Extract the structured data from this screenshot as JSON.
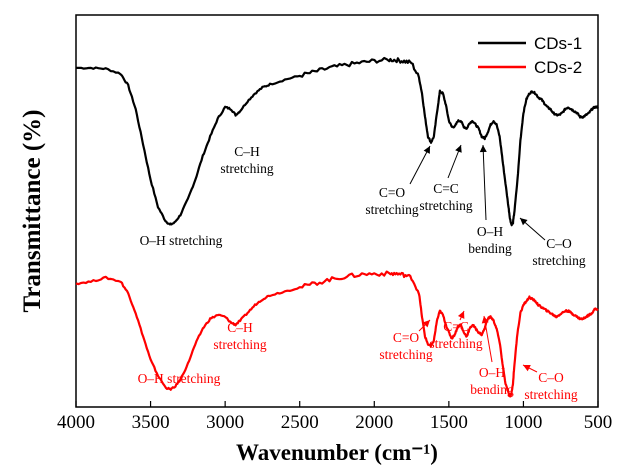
{
  "chart_data": {
    "type": "line",
    "xlabel": "Wavenumber (cm⁻¹)",
    "ylabel": "Transmittance (%)",
    "xlim": [
      4000,
      500
    ],
    "x_reversed": true,
    "xticks": [
      4000,
      3500,
      3000,
      2500,
      2000,
      1500,
      1000,
      500
    ],
    "y_ticks_shown": false,
    "grid": false,
    "legend_position": "top-right",
    "series": [
      {
        "name": "CDs-1",
        "color": "#000000",
        "x": [
          4000,
          3900,
          3800,
          3700,
          3650,
          3600,
          3550,
          3500,
          3450,
          3400,
          3370,
          3340,
          3300,
          3250,
          3200,
          3150,
          3100,
          3050,
          3000,
          2960,
          2930,
          2900,
          2850,
          2800,
          2750,
          2700,
          2600,
          2500,
          2400,
          2300,
          2200,
          2100,
          2000,
          1900,
          1850,
          1800,
          1750,
          1700,
          1680,
          1660,
          1640,
          1620,
          1600,
          1580,
          1560,
          1540,
          1520,
          1500,
          1480,
          1460,
          1440,
          1420,
          1400,
          1380,
          1360,
          1340,
          1320,
          1300,
          1280,
          1260,
          1240,
          1220,
          1200,
          1180,
          1160,
          1140,
          1120,
          1100,
          1090,
          1080,
          1070,
          1060,
          1040,
          1020,
          1000,
          980,
          960,
          940,
          920,
          900,
          880,
          860,
          840,
          820,
          800,
          780,
          760,
          740,
          720,
          700,
          680,
          660,
          640,
          620,
          600,
          580,
          560,
          540,
          520,
          500
        ],
        "y": [
          86.5,
          86.5,
          86.3,
          85,
          82,
          76,
          67,
          58,
          51,
          47.5,
          46.5,
          47,
          49,
          53,
          58,
          64,
          69,
          73.5,
          76.5,
          76,
          74.5,
          75.5,
          78,
          80,
          81.5,
          82.3,
          83.5,
          84.5,
          85.5,
          86.5,
          87.2,
          87.8,
          88.3,
          88.6,
          88.5,
          88.2,
          87.8,
          84,
          80,
          74,
          69,
          67.5,
          69,
          75,
          80.5,
          80,
          77,
          73,
          71.5,
          71.5,
          73,
          73,
          71.5,
          71,
          72.5,
          73,
          72,
          71,
          69,
          68.5,
          70,
          72,
          73,
          72,
          69,
          63,
          57,
          51,
          48,
          46.5,
          47,
          50,
          58,
          68,
          75,
          78.5,
          80,
          80.5,
          80,
          79,
          78.5,
          77.5,
          76.5,
          76,
          75,
          74.5,
          74.5,
          75,
          76,
          76.5,
          76,
          75.5,
          75,
          74,
          74,
          74.5,
          75,
          76,
          76.5,
          76.5
        ]
      },
      {
        "name": "CDs-2",
        "color": "#ff0000",
        "x": [
          4000,
          3900,
          3800,
          3700,
          3650,
          3600,
          3550,
          3500,
          3450,
          3400,
          3370,
          3340,
          3300,
          3250,
          3200,
          3150,
          3100,
          3050,
          3000,
          2960,
          2930,
          2900,
          2850,
          2800,
          2750,
          2700,
          2600,
          2500,
          2400,
          2300,
          2200,
          2100,
          2000,
          1900,
          1850,
          1800,
          1750,
          1700,
          1680,
          1660,
          1640,
          1620,
          1600,
          1580,
          1560,
          1540,
          1520,
          1500,
          1480,
          1460,
          1440,
          1420,
          1400,
          1380,
          1360,
          1340,
          1320,
          1300,
          1280,
          1260,
          1240,
          1220,
          1200,
          1180,
          1160,
          1140,
          1120,
          1100,
          1090,
          1080,
          1070,
          1060,
          1040,
          1020,
          1000,
          980,
          960,
          940,
          920,
          900,
          880,
          860,
          840,
          820,
          800,
          780,
          760,
          740,
          720,
          700,
          680,
          660,
          640,
          620,
          600,
          580,
          560,
          540,
          520,
          500
        ],
        "y": [
          31.5,
          32,
          33,
          32,
          29,
          24,
          18,
          12,
          8,
          5,
          4.5,
          5,
          7,
          11,
          16,
          20,
          22.5,
          23.5,
          23,
          21.5,
          21,
          22,
          24,
          26,
          27.5,
          28.5,
          29.5,
          30.5,
          31.5,
          32.5,
          33.2,
          33.8,
          34,
          34,
          34,
          33.7,
          33,
          29,
          23,
          18,
          16,
          15.5,
          17,
          22,
          24.5,
          23.5,
          21,
          19,
          17.5,
          18.5,
          20.5,
          21,
          19,
          18,
          20,
          21,
          20,
          19,
          18.5,
          20,
          22.5,
          23,
          22,
          20,
          16.5,
          11,
          6,
          3.5,
          2.5,
          3.5,
          6,
          11,
          19,
          24,
          26,
          27,
          28,
          27.5,
          27,
          26,
          25.5,
          25,
          24.5,
          24,
          23.5,
          23,
          23.5,
          24,
          24.5,
          24.5,
          24,
          23.5,
          23,
          22.5,
          22.5,
          23,
          23.5,
          24,
          25,
          25
        ]
      }
    ],
    "annotations": [
      {
        "series": "CDs-1",
        "lines": [
          "O–H stretching"
        ]
      },
      {
        "series": "CDs-1",
        "lines": [
          "C–H",
          "stretching"
        ]
      },
      {
        "series": "CDs-1",
        "lines": [
          "C=O",
          "stretching"
        ]
      },
      {
        "series": "CDs-1",
        "lines": [
          "C=C",
          "stretching"
        ]
      },
      {
        "series": "CDs-1",
        "lines": [
          "O–H",
          "bending"
        ]
      },
      {
        "series": "CDs-1",
        "lines": [
          "C–O",
          "stretching"
        ]
      },
      {
        "series": "CDs-2",
        "lines": [
          "O–H stretching"
        ]
      },
      {
        "series": "CDs-2",
        "lines": [
          "C–H",
          "stretching"
        ]
      },
      {
        "series": "CDs-2",
        "lines": [
          "C=O",
          "stretching"
        ]
      },
      {
        "series": "CDs-2",
        "lines": [
          "C=C",
          "stretching"
        ]
      },
      {
        "series": "CDs-2",
        "lines": [
          "O–H",
          "bending"
        ]
      },
      {
        "series": "CDs-2",
        "lines": [
          "C–O",
          "stretching"
        ]
      }
    ]
  }
}
